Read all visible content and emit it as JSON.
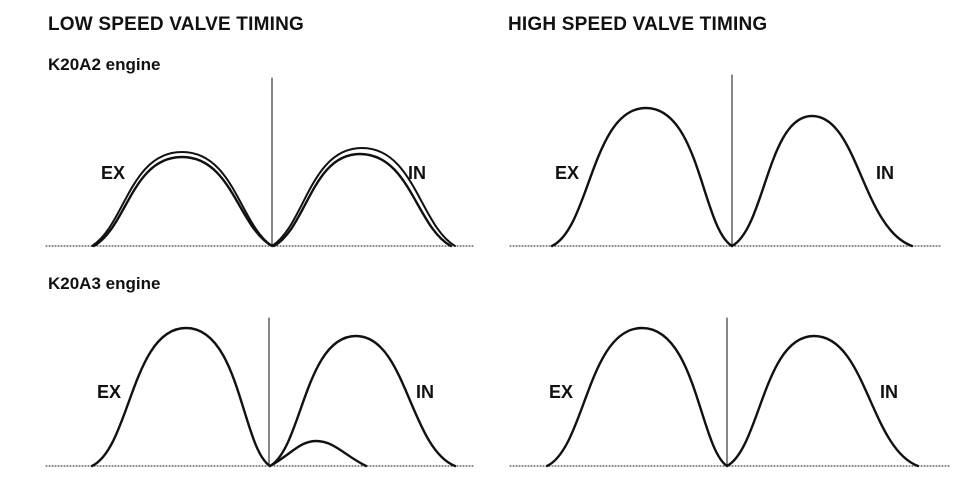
{
  "headings": {
    "low_speed": "LOW SPEED VALVE TIMING",
    "high_speed": "HIGH SPEED VALVE TIMING"
  },
  "engines": {
    "k20a2": "K20A2 engine",
    "k20a3": "K20A3 engine"
  },
  "curve_labels": {
    "exhaust": "EX",
    "intake": "IN"
  },
  "colors": {
    "ink": "#111111",
    "background": "#ffffff"
  }
}
